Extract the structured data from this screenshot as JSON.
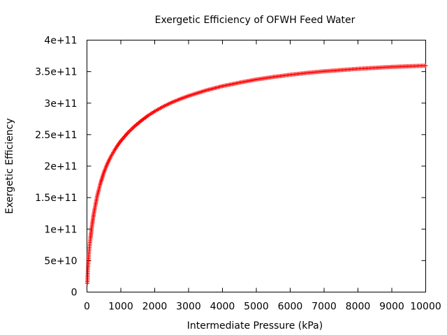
{
  "chart_data": {
    "type": "scatter",
    "title": "Exergetic Efficiency of OFWH Feed Water",
    "xlabel": "Intermediate Pressure (kPa)",
    "ylabel": "Exergetic Efficiency",
    "xlim": [
      0,
      10000
    ],
    "ylim": [
      0,
      400000000000
    ],
    "xticks": [
      0,
      1000,
      2000,
      3000,
      4000,
      5000,
      6000,
      7000,
      8000,
      9000,
      10000
    ],
    "xtick_labels": [
      "0",
      "1000",
      "2000",
      "3000",
      "4000",
      "5000",
      "6000",
      "7000",
      "8000",
      "9000",
      "10000"
    ],
    "yticks": [
      0,
      50000000000,
      100000000000,
      150000000000,
      200000000000,
      250000000000,
      300000000000,
      350000000000,
      400000000000
    ],
    "ytick_labels": [
      "0",
      "5e+10",
      "1e+11",
      "1.5e+11",
      "2e+11",
      "2.5e+11",
      "3e+11",
      "3.5e+11",
      "4e+11"
    ],
    "grid": false,
    "marker": "+",
    "color": "#ff0000",
    "series": [
      {
        "x": [
          10,
          20,
          30,
          40,
          50,
          75,
          100,
          150,
          200,
          300,
          400,
          500,
          600,
          700,
          800,
          900,
          1000,
          1200,
          1400,
          1600,
          1800,
          2000,
          2250,
          2500,
          2750,
          3000,
          3500,
          4000,
          4500,
          5000,
          5500,
          6000,
          6500,
          7000,
          7500,
          8000,
          8500,
          9000,
          9500,
          10000
        ],
        "y": [
          14000000000,
          27000000000,
          38000000000,
          48000000000,
          56000000000,
          71000000000,
          84000000000,
          106000000000,
          124000000000,
          152000000000,
          173000000000,
          190000000000,
          203500000000,
          214500000000,
          224000000000,
          232500000000,
          240000000000,
          252500000000,
          263000000000,
          272000000000,
          280000000000,
          287000000000,
          294500000000,
          301000000000,
          306500000000,
          311500000000,
          320000000000,
          327000000000,
          332500000000,
          337500000000,
          341500000000,
          345000000000,
          348000000000,
          350500000000,
          352500000000,
          354500000000,
          356000000000,
          357500000000,
          358500000000,
          359500000000
        ]
      }
    ]
  }
}
